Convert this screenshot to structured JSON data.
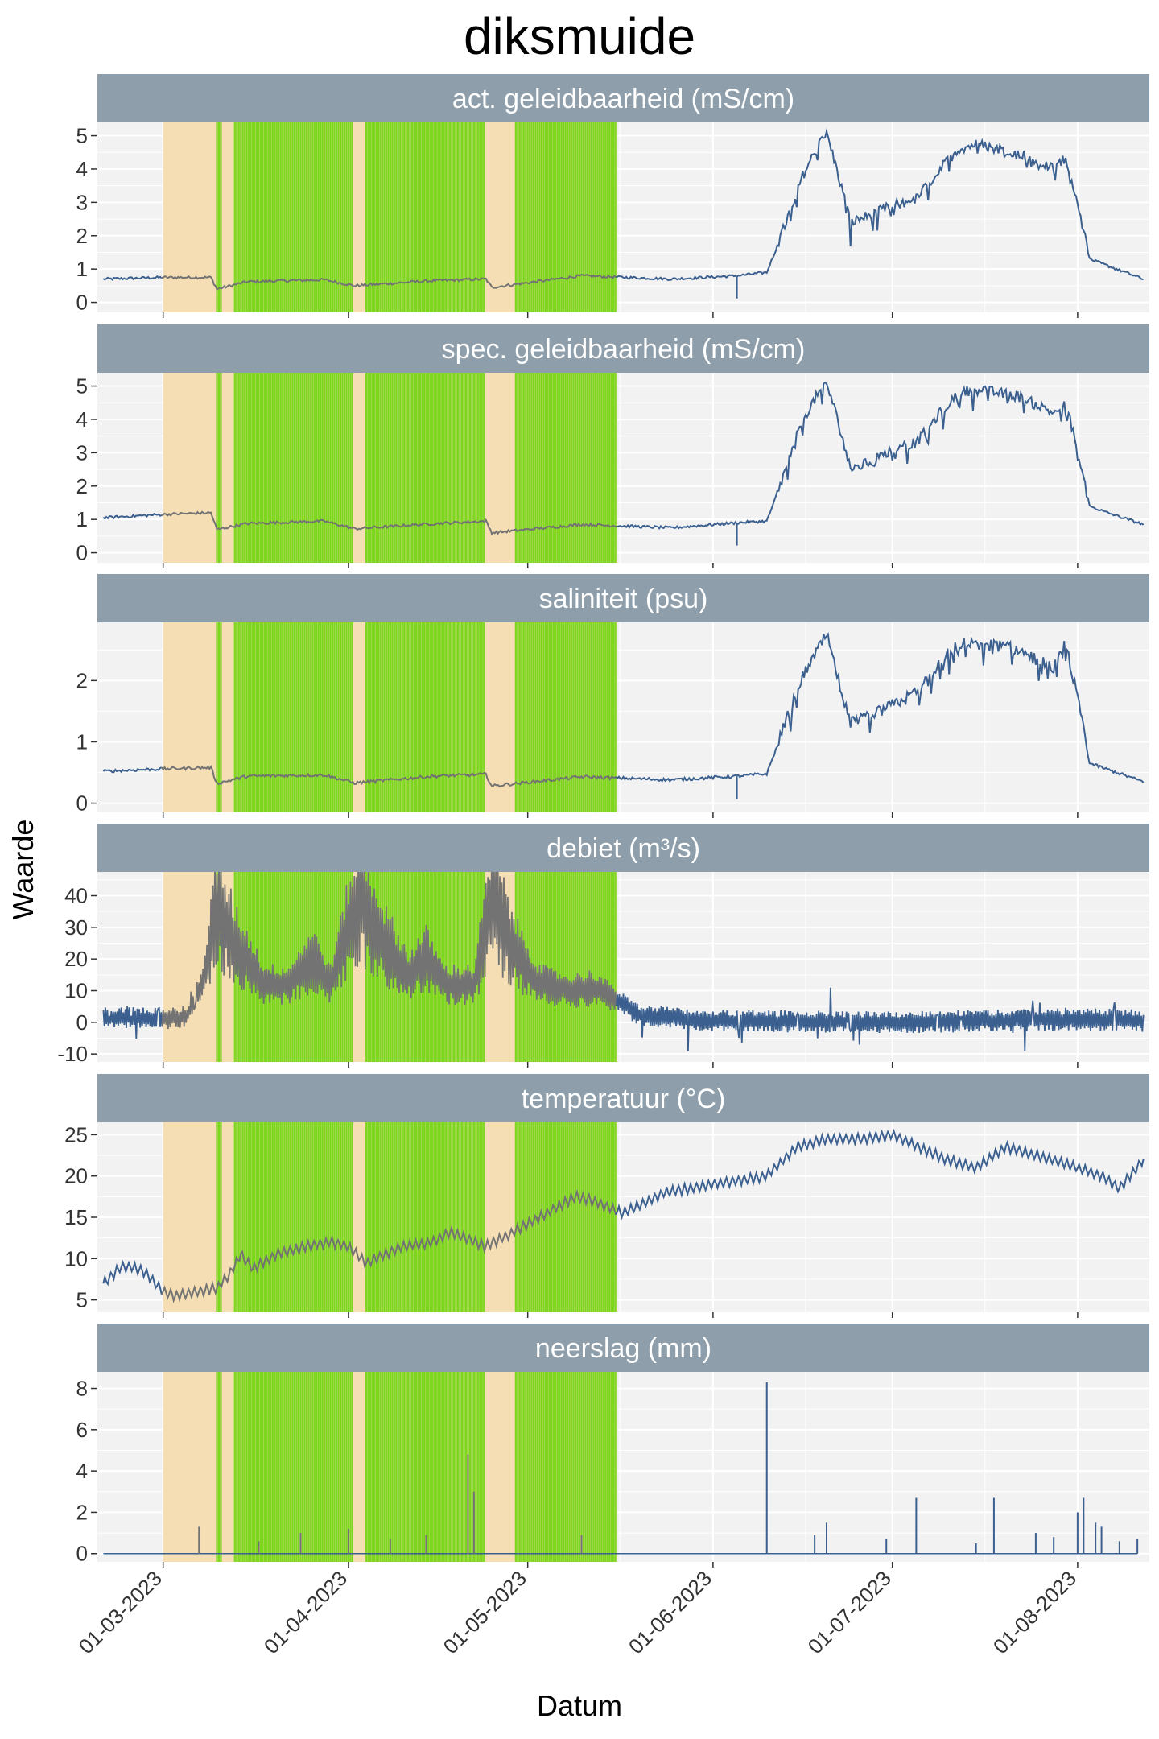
{
  "title": "diksmuide",
  "chart_data": {
    "type": "line",
    "title": "diksmuide",
    "xlabel": "Datum",
    "ylabel": "Waarde",
    "x_tick_labels": [
      "01-03-2023",
      "01-04-2023",
      "01-05-2023",
      "01-06-2023",
      "01-07-2023",
      "01-08-2023"
    ],
    "x_range": [
      "2023-02-18",
      "2023-08-13"
    ],
    "x_data_range": [
      "2023-02-19",
      "2023-08-12"
    ],
    "shaded_period_orange": [
      "2023-03-01",
      "2023-05-16"
    ],
    "shaded_periods_green": [
      [
        "2023-03-10",
        "2023-03-11"
      ],
      [
        "2023-03-13",
        "2023-04-02"
      ],
      [
        "2023-04-04",
        "2023-04-24"
      ],
      [
        "2023-04-29",
        "2023-05-16"
      ]
    ],
    "colors": {
      "line_outside": "#3B5F8F",
      "line_inside": "#737373",
      "orange_band": "#F5DEB3",
      "green_band": "#7CD61E",
      "strip": "#8E9FAB",
      "panel_bg": "#F2F2F2"
    },
    "panels": [
      {
        "label": "act. geleidbaarheid (mS/cm)",
        "ylim": [
          -0.3,
          5.4
        ],
        "yticks": [
          0,
          1,
          2,
          3,
          4,
          5
        ],
        "series": [
          [
            "2023-02-19",
            0.7
          ],
          [
            "2023-03-01",
            0.75
          ],
          [
            "2023-03-09",
            0.75
          ],
          [
            "2023-03-10",
            0.4
          ],
          [
            "2023-03-15",
            0.62
          ],
          [
            "2023-03-28",
            0.68
          ],
          [
            "2023-04-02",
            0.5
          ],
          [
            "2023-04-15",
            0.65
          ],
          [
            "2023-04-24",
            0.7
          ],
          [
            "2023-04-25",
            0.45
          ],
          [
            "2023-05-10",
            0.8
          ],
          [
            "2023-05-25",
            0.7
          ],
          [
            "2023-06-05",
            0.8
          ],
          [
            "2023-06-10",
            0.9
          ],
          [
            "2023-06-12",
            1.8
          ],
          [
            "2023-06-16",
            3.8
          ],
          [
            "2023-06-18",
            4.5
          ],
          [
            "2023-06-20",
            5.1
          ],
          [
            "2023-06-22",
            3.8
          ],
          [
            "2023-06-24",
            2.4
          ],
          [
            "2023-06-27",
            2.6
          ],
          [
            "2023-07-01",
            2.9
          ],
          [
            "2023-07-05",
            3.1
          ],
          [
            "2023-07-09",
            4.0
          ],
          [
            "2023-07-12",
            4.6
          ],
          [
            "2023-07-15",
            4.75
          ],
          [
            "2023-07-22",
            4.5
          ],
          [
            "2023-07-28",
            4.0
          ],
          [
            "2023-07-30",
            4.4
          ],
          [
            "2023-08-01",
            3.0
          ],
          [
            "2023-08-03",
            1.3
          ],
          [
            "2023-08-06",
            1.1
          ],
          [
            "2023-08-12",
            0.7
          ]
        ]
      },
      {
        "label": "spec. geleidbaarheid (mS/cm)",
        "ylim": [
          -0.3,
          5.4
        ],
        "yticks": [
          0,
          1,
          2,
          3,
          4,
          5
        ],
        "series": [
          [
            "2023-02-19",
            1.05
          ],
          [
            "2023-03-01",
            1.15
          ],
          [
            "2023-03-09",
            1.2
          ],
          [
            "2023-03-10",
            0.7
          ],
          [
            "2023-03-15",
            0.88
          ],
          [
            "2023-03-28",
            0.95
          ],
          [
            "2023-04-02",
            0.72
          ],
          [
            "2023-04-15",
            0.87
          ],
          [
            "2023-04-24",
            0.95
          ],
          [
            "2023-04-25",
            0.6
          ],
          [
            "2023-05-10",
            0.85
          ],
          [
            "2023-05-25",
            0.75
          ],
          [
            "2023-06-05",
            0.9
          ],
          [
            "2023-06-10",
            0.95
          ],
          [
            "2023-06-12",
            1.9
          ],
          [
            "2023-06-16",
            4.0
          ],
          [
            "2023-06-18",
            4.6
          ],
          [
            "2023-06-20",
            5.1
          ],
          [
            "2023-06-22",
            3.9
          ],
          [
            "2023-06-24",
            2.5
          ],
          [
            "2023-06-27",
            2.7
          ],
          [
            "2023-07-01",
            3.1
          ],
          [
            "2023-07-05",
            3.3
          ],
          [
            "2023-07-09",
            4.2
          ],
          [
            "2023-07-12",
            4.8
          ],
          [
            "2023-07-15",
            4.9
          ],
          [
            "2023-07-22",
            4.7
          ],
          [
            "2023-07-28",
            4.2
          ],
          [
            "2023-07-30",
            4.5
          ],
          [
            "2023-08-01",
            3.1
          ],
          [
            "2023-08-03",
            1.4
          ],
          [
            "2023-08-06",
            1.2
          ],
          [
            "2023-08-12",
            0.85
          ]
        ]
      },
      {
        "label": "saliniteit (psu)",
        "ylim": [
          -0.15,
          2.95
        ],
        "yticks": [
          0,
          1,
          2
        ],
        "series": [
          [
            "2023-02-19",
            0.52
          ],
          [
            "2023-03-01",
            0.56
          ],
          [
            "2023-03-09",
            0.58
          ],
          [
            "2023-03-10",
            0.32
          ],
          [
            "2023-03-15",
            0.44
          ],
          [
            "2023-03-28",
            0.46
          ],
          [
            "2023-04-02",
            0.33
          ],
          [
            "2023-04-15",
            0.44
          ],
          [
            "2023-04-24",
            0.47
          ],
          [
            "2023-04-25",
            0.28
          ],
          [
            "2023-05-10",
            0.43
          ],
          [
            "2023-05-25",
            0.38
          ],
          [
            "2023-06-05",
            0.44
          ],
          [
            "2023-06-10",
            0.48
          ],
          [
            "2023-06-12",
            1.0
          ],
          [
            "2023-06-16",
            2.1
          ],
          [
            "2023-06-18",
            2.4
          ],
          [
            "2023-06-20",
            2.75
          ],
          [
            "2023-06-22",
            2.0
          ],
          [
            "2023-06-24",
            1.3
          ],
          [
            "2023-06-27",
            1.4
          ],
          [
            "2023-07-01",
            1.6
          ],
          [
            "2023-07-05",
            1.8
          ],
          [
            "2023-07-09",
            2.3
          ],
          [
            "2023-07-12",
            2.6
          ],
          [
            "2023-07-15",
            2.65
          ],
          [
            "2023-07-22",
            2.5
          ],
          [
            "2023-07-28",
            2.2
          ],
          [
            "2023-07-30",
            2.6
          ],
          [
            "2023-08-01",
            1.7
          ],
          [
            "2023-08-03",
            0.65
          ],
          [
            "2023-08-06",
            0.55
          ],
          [
            "2023-08-12",
            0.35
          ]
        ]
      },
      {
        "label": "debiet (m³/s)",
        "ylim": [
          -12.5,
          47.5
        ],
        "yticks": [
          -10,
          0,
          10,
          20,
          30,
          40
        ],
        "series": [
          [
            "2023-02-19",
            2
          ],
          [
            "2023-03-01",
            1
          ],
          [
            "2023-03-05",
            2
          ],
          [
            "2023-03-08",
            15
          ],
          [
            "2023-03-10",
            36
          ],
          [
            "2023-03-13",
            25
          ],
          [
            "2023-03-18",
            12
          ],
          [
            "2023-03-22",
            12
          ],
          [
            "2023-03-26",
            20
          ],
          [
            "2023-03-29",
            12
          ],
          [
            "2023-04-01",
            30
          ],
          [
            "2023-04-03",
            38
          ],
          [
            "2023-04-07",
            25
          ],
          [
            "2023-04-11",
            15
          ],
          [
            "2023-04-14",
            20
          ],
          [
            "2023-04-17",
            12
          ],
          [
            "2023-04-22",
            12
          ],
          [
            "2023-04-25",
            38
          ],
          [
            "2023-04-29",
            22
          ],
          [
            "2023-05-03",
            12
          ],
          [
            "2023-05-08",
            10
          ],
          [
            "2023-05-12",
            11
          ],
          [
            "2023-05-16",
            7
          ],
          [
            "2023-05-20",
            2
          ],
          [
            "2023-06-01",
            0.5
          ],
          [
            "2023-07-01",
            0
          ],
          [
            "2023-08-01",
            1
          ],
          [
            "2023-08-12",
            0.5
          ]
        ]
      },
      {
        "label": "temperatuur (°C)",
        "ylim": [
          3.5,
          26.5
        ],
        "yticks": [
          5,
          10,
          15,
          20,
          25
        ],
        "series": [
          [
            "2023-02-19",
            7
          ],
          [
            "2023-02-22",
            9
          ],
          [
            "2023-02-24",
            9
          ],
          [
            "2023-02-26",
            8.3
          ],
          [
            "2023-03-01",
            6
          ],
          [
            "2023-03-03",
            5.5
          ],
          [
            "2023-03-07",
            6
          ],
          [
            "2023-03-10",
            6.5
          ],
          [
            "2023-03-12",
            8
          ],
          [
            "2023-03-14",
            10.5
          ],
          [
            "2023-03-16",
            8.8
          ],
          [
            "2023-03-20",
            10.5
          ],
          [
            "2023-03-25",
            11.5
          ],
          [
            "2023-03-29",
            12
          ],
          [
            "2023-04-01",
            11.5
          ],
          [
            "2023-04-04",
            9.5
          ],
          [
            "2023-04-10",
            11.5
          ],
          [
            "2023-04-15",
            12
          ],
          [
            "2023-04-18",
            13.2
          ],
          [
            "2023-04-24",
            11.5
          ],
          [
            "2023-04-28",
            13
          ],
          [
            "2023-05-03",
            15
          ],
          [
            "2023-05-09",
            17.5
          ],
          [
            "2023-05-12",
            17
          ],
          [
            "2023-05-15",
            16
          ],
          [
            "2023-05-17",
            15.5
          ],
          [
            "2023-05-24",
            18
          ],
          [
            "2023-06-01",
            19
          ],
          [
            "2023-06-10",
            20
          ],
          [
            "2023-06-15",
            23.5
          ],
          [
            "2023-06-20",
            24.5
          ],
          [
            "2023-06-27",
            24.5
          ],
          [
            "2023-07-01",
            25
          ],
          [
            "2023-07-10",
            22
          ],
          [
            "2023-07-15",
            21
          ],
          [
            "2023-07-20",
            23.5
          ],
          [
            "2023-07-25",
            22.5
          ],
          [
            "2023-07-30",
            21.5
          ],
          [
            "2023-08-05",
            20
          ],
          [
            "2023-08-08",
            18.5
          ],
          [
            "2023-08-12",
            22
          ]
        ]
      },
      {
        "label": "neerslag (mm)",
        "ylim": [
          -0.4,
          8.8
        ],
        "yticks": [
          0,
          2,
          4,
          6,
          8
        ],
        "series": [
          [
            "2023-02-19",
            0
          ],
          [
            "2023-03-07",
            1.3
          ],
          [
            "2023-03-17",
            0.6
          ],
          [
            "2023-03-24",
            1.0
          ],
          [
            "2023-04-01",
            1.2
          ],
          [
            "2023-04-08",
            0.7
          ],
          [
            "2023-04-14",
            0.9
          ],
          [
            "2023-04-21",
            4.8
          ],
          [
            "2023-04-22",
            3.0
          ],
          [
            "2023-05-10",
            0.9
          ],
          [
            "2023-06-10",
            8.3
          ],
          [
            "2023-06-18",
            0.9
          ],
          [
            "2023-06-20",
            1.5
          ],
          [
            "2023-06-30",
            0.7
          ],
          [
            "2023-07-05",
            2.7
          ],
          [
            "2023-07-15",
            0.5
          ],
          [
            "2023-07-18",
            2.7
          ],
          [
            "2023-07-25",
            1.0
          ],
          [
            "2023-07-28",
            0.8
          ],
          [
            "2023-08-01",
            2.0
          ],
          [
            "2023-08-02",
            2.7
          ],
          [
            "2023-08-04",
            1.5
          ],
          [
            "2023-08-05",
            1.3
          ],
          [
            "2023-08-08",
            0.6
          ],
          [
            "2023-08-11",
            0.7
          ]
        ]
      }
    ]
  }
}
